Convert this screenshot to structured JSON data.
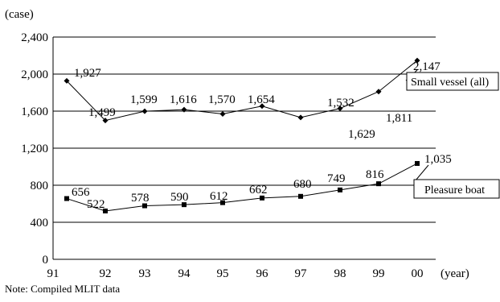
{
  "chart_data": {
    "type": "line",
    "ylabel": "(case)",
    "xlabel": "(year)",
    "ylim": [
      0,
      2400
    ],
    "yticks": [
      0,
      400,
      800,
      1200,
      1600,
      2000,
      2400
    ],
    "ytick_labels": [
      "0",
      "400",
      "800",
      "1,200",
      "1,600",
      "2,000",
      "2,400"
    ],
    "categories": [
      "91",
      "92",
      "93",
      "94",
      "95",
      "96",
      "97",
      "98",
      "99",
      "00"
    ],
    "grid": true,
    "series": [
      {
        "name": "Small vessel (all)",
        "marker": "diamond",
        "values": [
          1927,
          1499,
          1599,
          1616,
          1570,
          1654,
          1532,
          1629,
          1811,
          2147
        ],
        "labels": [
          "1,927",
          "1,499",
          "1,599",
          "1,616",
          "1,570",
          "1,654",
          "1,532",
          "1,629",
          "1,811",
          "2,147"
        ]
      },
      {
        "name": "Pleasure boat",
        "marker": "square",
        "values": [
          656,
          522,
          578,
          590,
          612,
          662,
          680,
          749,
          816,
          1035
        ],
        "labels": [
          "656",
          "522",
          "578",
          "590",
          "612",
          "662",
          "680",
          "749",
          "816",
          "1,035"
        ]
      }
    ]
  },
  "note": "Note: Compiled MLIT data"
}
